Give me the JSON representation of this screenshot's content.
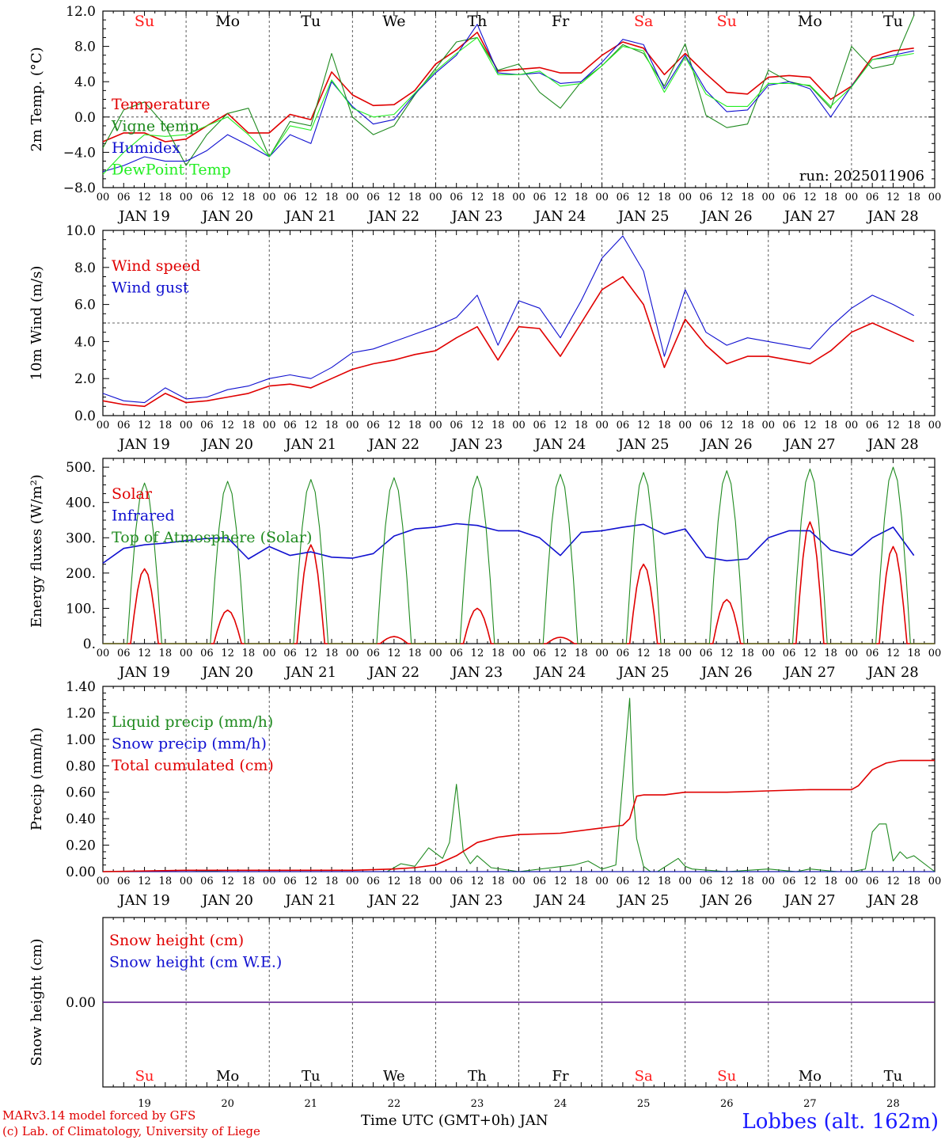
{
  "run_label": "run: 2025011906",
  "credits": [
    "MARv3.14 model forced by GFS",
    "(c) Lab. of Climatology, University of Liege"
  ],
  "station": "Lobbes (alt. 162m)",
  "xaxis_title": "Time UTC (GMT+0h) JAN",
  "colors": {
    "red": "#e00000",
    "green": "#1f8a1f",
    "blue": "#1010d0",
    "lightgreen": "#22ee22",
    "weekend": "#ff1a1a",
    "weekday": "#000000"
  },
  "day_names": [
    "Su",
    "Mo",
    "Tu",
    "We",
    "Th",
    "Fr",
    "Sa",
    "Su",
    "Mo",
    "Tu"
  ],
  "weekend_flags": [
    true,
    false,
    false,
    false,
    false,
    false,
    true,
    true,
    false,
    false
  ],
  "day_labels": [
    "JAN 19",
    "JAN 20",
    "JAN 21",
    "JAN 22",
    "JAN 23",
    "JAN 24",
    "JAN 25",
    "JAN 26",
    "JAN 27",
    "JAN 28"
  ],
  "day_numbers": [
    "19",
    "20",
    "21",
    "22",
    "23",
    "24",
    "25",
    "26",
    "27",
    "28"
  ],
  "hour_ticks": [
    "00",
    "06",
    "12",
    "18"
  ],
  "chart_data": [
    {
      "type": "line",
      "ylabel": "2m Temp. (°C)",
      "ylim": [
        -8,
        12
      ],
      "yticks": [
        "12.0",
        "8.0",
        "4.0",
        "0.0",
        "−4.0",
        "−8.0"
      ],
      "yticks_values": [
        12,
        8,
        4,
        0,
        -4,
        -8
      ],
      "hline": 0,
      "x_unit": "hours since JAN 19 00 UTC",
      "series": [
        {
          "name": "Temperature",
          "color": "red",
          "x": [
            0,
            6,
            12,
            18,
            24,
            30,
            36,
            42,
            48,
            54,
            60,
            66,
            72,
            78,
            84,
            90,
            96,
            102,
            108,
            114,
            120,
            126,
            132,
            138,
            144,
            150,
            156,
            162,
            168,
            174,
            180,
            186,
            192,
            198,
            204,
            210,
            216,
            222,
            228,
            234
          ],
          "y": [
            -2.8,
            -1.8,
            -1.8,
            -2.8,
            -2.5,
            -1.0,
            0.4,
            -1.8,
            -1.8,
            0.3,
            -0.3,
            5.1,
            2.5,
            1.3,
            1.4,
            3.0,
            6.0,
            7.6,
            9.6,
            5.2,
            5.4,
            5.6,
            5.0,
            5.0,
            7.0,
            8.5,
            7.8,
            4.8,
            7.2,
            4.9,
            2.8,
            2.6,
            4.5,
            4.7,
            4.5,
            2.0,
            3.5,
            6.8,
            7.5,
            7.8
          ]
        },
        {
          "name": "Vigne temp",
          "color": "green",
          "x": [
            0,
            6,
            12,
            18,
            24,
            30,
            36,
            42,
            48,
            54,
            60,
            66,
            72,
            78,
            84,
            90,
            96,
            102,
            108,
            114,
            120,
            126,
            132,
            138,
            144,
            150,
            156,
            162,
            168,
            174,
            180,
            186,
            192,
            198,
            204,
            210,
            216,
            222,
            228,
            234
          ],
          "y": [
            -3.5,
            0.8,
            1.7,
            -1.0,
            -5.5,
            -2.0,
            0.4,
            1.0,
            -4.5,
            -0.5,
            -1.0,
            7.2,
            0.0,
            -2.0,
            -1.0,
            2.5,
            5.5,
            8.5,
            9.0,
            5.3,
            6.0,
            2.8,
            1.0,
            4.0,
            5.8,
            8.2,
            7.2,
            3.5,
            8.3,
            0.2,
            -1.2,
            -0.8,
            5.3,
            4.0,
            3.5,
            1.0,
            8.0,
            5.5,
            6.0,
            11.5
          ]
        },
        {
          "name": "Humidex",
          "color": "blue",
          "x": [
            0,
            6,
            12,
            18,
            24,
            30,
            36,
            42,
            48,
            54,
            60,
            66,
            72,
            78,
            84,
            90,
            96,
            102,
            108,
            114,
            120,
            126,
            132,
            138,
            144,
            150,
            156,
            162,
            168,
            174,
            180,
            186,
            192,
            198,
            204,
            210,
            216,
            222,
            228,
            234
          ],
          "y": [
            -6.2,
            -5.5,
            -4.5,
            -5.0,
            -5.0,
            -3.8,
            -2.0,
            -3.2,
            -4.5,
            -2.0,
            -3.0,
            4.0,
            1.2,
            -0.8,
            -0.3,
            2.6,
            5.0,
            7.0,
            10.5,
            5.0,
            4.8,
            5.0,
            3.8,
            4.0,
            6.2,
            8.8,
            8.2,
            3.2,
            7.0,
            3.0,
            0.6,
            0.8,
            3.6,
            4.0,
            3.2,
            0.0,
            3.5,
            6.5,
            7.0,
            7.5
          ]
        },
        {
          "name": "DewPoint Temp",
          "color": "lightgreen",
          "x": [
            0,
            6,
            12,
            18,
            24,
            30,
            36,
            42,
            48,
            54,
            60,
            66,
            72,
            78,
            84,
            90,
            96,
            102,
            108,
            114,
            120,
            126,
            132,
            138,
            144,
            150,
            156,
            162,
            168,
            174,
            180,
            186,
            192,
            198,
            204,
            210,
            216,
            222,
            228,
            234
          ],
          "y": [
            -6.5,
            -4.0,
            -2.0,
            -2.2,
            -2.0,
            -1.0,
            0.0,
            -2.0,
            -4.5,
            -1.0,
            -1.5,
            4.2,
            1.0,
            0.0,
            0.3,
            2.7,
            5.2,
            7.2,
            9.0,
            4.8,
            4.8,
            5.2,
            3.5,
            3.8,
            5.8,
            8.0,
            7.5,
            2.8,
            6.8,
            2.6,
            1.2,
            1.2,
            3.8,
            3.8,
            3.6,
            1.2,
            3.4,
            6.5,
            6.8,
            7.2
          ]
        }
      ]
    },
    {
      "type": "line",
      "ylabel": "10m Wind (m/s)",
      "ylim": [
        0,
        10
      ],
      "yticks": [
        "10.0",
        "8.0",
        "6.0",
        "4.0",
        "2.0",
        "0.0"
      ],
      "yticks_values": [
        10,
        8,
        6,
        4,
        2,
        0
      ],
      "hline": 5,
      "x_unit": "hours since JAN 19 00 UTC",
      "series": [
        {
          "name": "Wind speed",
          "color": "red",
          "x": [
            0,
            6,
            12,
            18,
            24,
            30,
            36,
            42,
            48,
            54,
            60,
            66,
            72,
            78,
            84,
            90,
            96,
            102,
            108,
            114,
            120,
            126,
            132,
            138,
            144,
            150,
            156,
            162,
            168,
            174,
            180,
            186,
            192,
            198,
            204,
            210,
            216,
            222,
            228,
            234
          ],
          "y": [
            0.8,
            0.6,
            0.5,
            1.2,
            0.7,
            0.8,
            1.0,
            1.2,
            1.6,
            1.7,
            1.5,
            2.0,
            2.5,
            2.8,
            3.0,
            3.3,
            3.5,
            4.2,
            4.8,
            3.0,
            4.8,
            4.7,
            3.2,
            5.0,
            6.8,
            7.5,
            6.0,
            2.6,
            5.2,
            3.8,
            2.8,
            3.2,
            3.2,
            3.0,
            2.8,
            3.5,
            4.5,
            5.0,
            4.5,
            4.0
          ]
        },
        {
          "name": "Wind gust",
          "color": "blue",
          "x": [
            0,
            6,
            12,
            18,
            24,
            30,
            36,
            42,
            48,
            54,
            60,
            66,
            72,
            78,
            84,
            90,
            96,
            102,
            108,
            114,
            120,
            126,
            132,
            138,
            144,
            150,
            156,
            162,
            168,
            174,
            180,
            186,
            192,
            198,
            204,
            210,
            216,
            222,
            228,
            234
          ],
          "y": [
            1.2,
            0.8,
            0.7,
            1.5,
            0.9,
            1.0,
            1.4,
            1.6,
            2.0,
            2.2,
            2.0,
            2.6,
            3.4,
            3.6,
            4.0,
            4.4,
            4.8,
            5.3,
            6.5,
            3.8,
            6.2,
            5.8,
            4.2,
            6.2,
            8.5,
            9.7,
            7.8,
            3.2,
            6.8,
            4.5,
            3.8,
            4.2,
            4.0,
            3.8,
            3.6,
            4.8,
            5.8,
            6.5,
            6.0,
            5.4
          ]
        }
      ]
    },
    {
      "type": "line",
      "ylabel": "Energy fluxes (W/m²)",
      "ylim": [
        0,
        525
      ],
      "yticks": [
        "500.",
        "400.",
        "300.",
        "200.",
        "100.",
        "0."
      ],
      "yticks_values": [
        500,
        400,
        300,
        200,
        100,
        0
      ],
      "x_unit": "hours since JAN 19 00 UTC",
      "series": [
        {
          "name": "Solar",
          "color": "red",
          "peaks": [
            212,
            95,
            280,
            20,
            100,
            18,
            225,
            125,
            345,
            275
          ]
        },
        {
          "name": "Infrared",
          "color": "blue",
          "x": [
            0,
            6,
            12,
            18,
            24,
            30,
            36,
            42,
            48,
            54,
            60,
            66,
            72,
            78,
            84,
            90,
            96,
            102,
            108,
            114,
            120,
            126,
            132,
            138,
            144,
            150,
            156,
            162,
            168,
            174,
            180,
            186,
            192,
            198,
            204,
            210,
            216,
            222,
            228,
            234
          ],
          "y": [
            228,
            270,
            280,
            285,
            292,
            298,
            300,
            240,
            275,
            250,
            260,
            245,
            242,
            255,
            305,
            325,
            330,
            340,
            335,
            320,
            320,
            300,
            250,
            315,
            320,
            330,
            338,
            310,
            325,
            245,
            235,
            240,
            300,
            320,
            320,
            265,
            250,
            300,
            330,
            250
          ]
        },
        {
          "name": "Top of Atmosphere (Solar)",
          "color": "green",
          "peaks": [
            455,
            460,
            465,
            470,
            475,
            480,
            485,
            490,
            495,
            500
          ]
        }
      ]
    },
    {
      "type": "line",
      "ylabel": "Precip (mm/h)",
      "ylim": [
        0,
        1.4
      ],
      "yticks": [
        "1.40",
        "1.20",
        "1.00",
        "0.80",
        "0.60",
        "0.40",
        "0.20",
        "0.00"
      ],
      "yticks_values": [
        1.4,
        1.2,
        1.0,
        0.8,
        0.6,
        0.4,
        0.2,
        0.0
      ],
      "x_unit": "hours since JAN 19 00 UTC",
      "series": [
        {
          "name": "Liquid precip (mm/h)",
          "color": "green",
          "x": [
            0,
            24,
            36,
            48,
            72,
            82,
            86,
            90,
            94,
            98,
            100,
            102,
            104,
            106,
            108,
            112,
            120,
            136,
            140,
            144,
            148,
            152,
            153,
            154,
            156,
            158,
            160,
            166,
            168,
            170,
            180,
            192,
            200,
            204,
            212,
            216,
            220,
            222,
            224,
            226,
            228,
            230,
            232,
            234,
            240
          ],
          "y": [
            0,
            0.01,
            0,
            0,
            0,
            0,
            0.06,
            0.04,
            0.18,
            0.1,
            0.22,
            0.66,
            0.15,
            0.06,
            0.12,
            0.03,
            0,
            0.05,
            0.08,
            0.02,
            0.05,
            1.31,
            0.6,
            0.25,
            0.04,
            0,
            0,
            0.1,
            0.04,
            0.02,
            0,
            0.02,
            0,
            0.02,
            0,
            0,
            0.02,
            0.3,
            0.36,
            0.36,
            0.08,
            0.15,
            0.1,
            0.12,
            0
          ]
        },
        {
          "name": "Snow precip (mm/h)",
          "color": "blue",
          "x": [
            0,
            240
          ],
          "y": [
            0,
            0
          ]
        },
        {
          "name": "Total cumulated (cm)",
          "color": "red",
          "x": [
            0,
            24,
            48,
            72,
            84,
            90,
            96,
            102,
            108,
            114,
            120,
            132,
            144,
            150,
            152,
            154,
            156,
            162,
            168,
            180,
            192,
            204,
            216,
            218,
            222,
            226,
            230,
            234,
            240
          ],
          "y": [
            0,
            0.01,
            0.01,
            0.01,
            0.02,
            0.03,
            0.05,
            0.12,
            0.22,
            0.26,
            0.28,
            0.29,
            0.33,
            0.35,
            0.4,
            0.57,
            0.58,
            0.58,
            0.6,
            0.6,
            0.61,
            0.62,
            0.62,
            0.65,
            0.77,
            0.82,
            0.84,
            0.84,
            0.84
          ]
        }
      ]
    },
    {
      "type": "line",
      "ylabel": "Snow height (cm)",
      "ylim": [
        -1,
        1
      ],
      "yticks": [
        "0.00"
      ],
      "yticks_values": [
        0
      ],
      "series": [
        {
          "name": "Snow height (cm)",
          "color": "red",
          "x": [
            0,
            240
          ],
          "y": [
            0,
            0
          ]
        },
        {
          "name": "Snow height (cm W.E.)",
          "color": "blue",
          "x": [
            0,
            240
          ],
          "y": [
            0,
            0
          ]
        }
      ]
    }
  ]
}
